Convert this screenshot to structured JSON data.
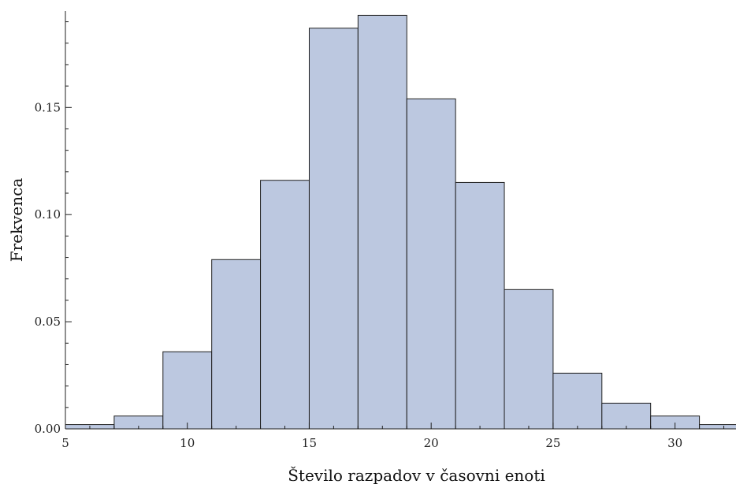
{
  "chart_data": {
    "type": "bar",
    "histogram": true,
    "title": "",
    "xlabel": "Število razpadov v časovni enoti",
    "ylabel": "Frekvenca",
    "xlim": [
      5,
      32.5
    ],
    "ylim": [
      0,
      0.195
    ],
    "x_ticks": [
      5,
      10,
      15,
      20,
      25,
      30
    ],
    "x_tick_labels": [
      "5",
      "10",
      "15",
      "20",
      "25",
      "30"
    ],
    "y_ticks": [
      0,
      0.05,
      0.1,
      0.15
    ],
    "y_tick_labels": [
      "0.00",
      "0.05",
      "0.10",
      "0.15"
    ],
    "bins": [
      {
        "from": 5,
        "to": 7,
        "value": 0.002
      },
      {
        "from": 7,
        "to": 9,
        "value": 0.006
      },
      {
        "from": 9,
        "to": 11,
        "value": 0.036
      },
      {
        "from": 11,
        "to": 13,
        "value": 0.079
      },
      {
        "from": 13,
        "to": 15,
        "value": 0.116
      },
      {
        "from": 15,
        "to": 17,
        "value": 0.187
      },
      {
        "from": 17,
        "to": 19,
        "value": 0.193
      },
      {
        "from": 19,
        "to": 21,
        "value": 0.154
      },
      {
        "from": 21,
        "to": 23,
        "value": 0.115
      },
      {
        "from": 23,
        "to": 25,
        "value": 0.065
      },
      {
        "from": 25,
        "to": 27,
        "value": 0.026
      },
      {
        "from": 27,
        "to": 29,
        "value": 0.012
      },
      {
        "from": 29,
        "to": 31,
        "value": 0.006
      },
      {
        "from": 31,
        "to": 33,
        "value": 0.002
      }
    ],
    "grid": false,
    "legend": "none",
    "colors": {
      "bar_fill": "#bcc8e0",
      "bar_edge": "#1f1f1f",
      "axis": "#1f1f1f"
    }
  }
}
